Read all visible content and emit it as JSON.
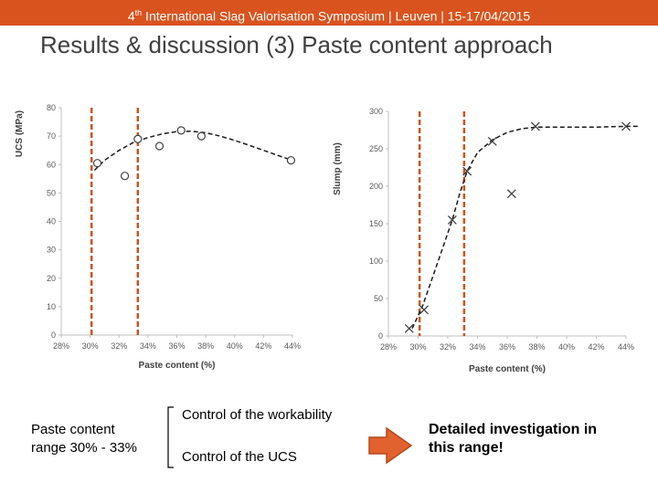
{
  "header": {
    "ordinal": "4",
    "ordinal_suffix": "th",
    "text": " International Slag Valorisation Symposium  |  Leuven  |  15-17/04/2015"
  },
  "slide_title": "Results & discussion (3) Paste content approach",
  "colors": {
    "accent": "#d9531e",
    "marker": "#404040",
    "guide": "#c9541f"
  },
  "chart_data": [
    {
      "type": "scatter",
      "ylabel": "UCS (MPa)",
      "xlabel": "Paste content (%)",
      "xlim": [
        28,
        44
      ],
      "ylim": [
        0,
        80
      ],
      "xticks": [
        28,
        30,
        32,
        34,
        36,
        38,
        40,
        42,
        44
      ],
      "xtick_labels": [
        "28%",
        "30%",
        "32%",
        "34%",
        "36%",
        "38%",
        "40%",
        "42%",
        "44%"
      ],
      "yticks": [
        0,
        10,
        20,
        30,
        40,
        50,
        60,
        70,
        80
      ],
      "ytick_labels": [
        "0",
        "10",
        "20",
        "30",
        "40",
        "50",
        "60",
        "70",
        "80"
      ],
      "marker": "circle",
      "points": [
        [
          30.5,
          60.5
        ],
        [
          32.4,
          56
        ],
        [
          33.3,
          69
        ],
        [
          34.8,
          66.5
        ],
        [
          36.3,
          72
        ],
        [
          37.7,
          70
        ],
        [
          43.9,
          61.5
        ]
      ],
      "trend": [
        [
          30.3,
          58
        ],
        [
          31,
          61.5
        ],
        [
          32,
          65
        ],
        [
          33,
          67.8
        ],
        [
          34,
          69.5
        ],
        [
          35,
          70.8
        ],
        [
          36,
          71.6
        ],
        [
          37,
          71.7
        ],
        [
          38,
          71.2
        ],
        [
          39,
          70
        ],
        [
          40,
          68.5
        ],
        [
          41,
          66.8
        ],
        [
          42,
          65
        ],
        [
          43,
          63.2
        ],
        [
          44,
          61.5
        ]
      ],
      "guides": [
        30.1,
        33.3
      ]
    },
    {
      "type": "scatter",
      "ylabel": "Slump (mm)",
      "xlabel": "Paste content (%)",
      "xlim": [
        28,
        44
      ],
      "ylim": [
        0,
        300
      ],
      "xticks": [
        28,
        30,
        32,
        34,
        36,
        38,
        40,
        42,
        44
      ],
      "xtick_labels": [
        "28%",
        "30%",
        "32%",
        "34%",
        "36%",
        "38%",
        "40%",
        "42%",
        "44%"
      ],
      "yticks": [
        0,
        50,
        100,
        150,
        200,
        250,
        300
      ],
      "ytick_labels": [
        "0",
        "50",
        "100",
        "150",
        "200",
        "250",
        "300"
      ],
      "marker": "x",
      "points": [
        [
          29.4,
          10
        ],
        [
          30.4,
          35
        ],
        [
          32.3,
          155
        ],
        [
          33.3,
          220
        ],
        [
          35,
          260
        ],
        [
          36.3,
          190
        ],
        [
          37.9,
          280
        ],
        [
          44,
          280
        ]
      ],
      "trend": [
        [
          29.6,
          10
        ],
        [
          30.3,
          40
        ],
        [
          31,
          80
        ],
        [
          31.7,
          120
        ],
        [
          32.3,
          155
        ],
        [
          32.8,
          190
        ],
        [
          33.3,
          220
        ],
        [
          34,
          245
        ],
        [
          35,
          262
        ],
        [
          36,
          272
        ],
        [
          37,
          277
        ],
        [
          38,
          279
        ],
        [
          40,
          279
        ],
        [
          42,
          279
        ],
        [
          44,
          280
        ],
        [
          44.8,
          280
        ]
      ],
      "guides": [
        30.1,
        33.1
      ]
    }
  ],
  "notes": {
    "range_line1": "Paste content",
    "range_line2": "range 30% - 33%",
    "workability": "Control of the workability",
    "ucs": "Control of the UCS",
    "conclusion_line1": "Detailed investigation in",
    "conclusion_line2": "this range!"
  }
}
